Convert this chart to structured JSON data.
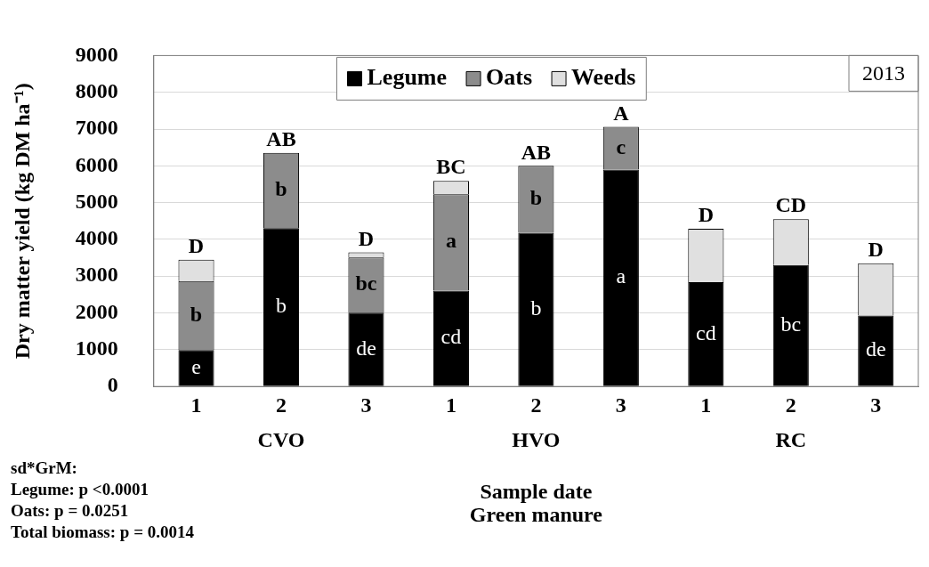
{
  "chart_data": {
    "type": "bar",
    "stacked": true,
    "title": "2013",
    "xlabel": "Sample date\nGreen manure",
    "ylabel": "Dry matter yield (kg DM ha⁻¹)",
    "categories": [
      "1",
      "2",
      "3",
      "1",
      "2",
      "3",
      "1",
      "2",
      "3"
    ],
    "series": [
      {
        "name": "Legume",
        "color": "#000000",
        "values": [
          990,
          4310,
          2010,
          2610,
          4180,
          5900,
          2840,
          3300,
          1930
        ],
        "value_labels": [
          "e",
          "b",
          "de",
          "cd",
          "b",
          "a",
          "cd",
          "bc",
          "de"
        ]
      },
      {
        "name": "Oats",
        "color": "#8c8c8c",
        "values": [
          1880,
          2040,
          1500,
          2620,
          1820,
          1160,
          0,
          0,
          0
        ],
        "value_labels": [
          "b",
          "b",
          "bc",
          "a",
          "b",
          "c",
          null,
          null,
          null
        ]
      },
      {
        "name": "Weeds",
        "color": "#e0e0e0",
        "values": [
          580,
          0,
          140,
          360,
          null,
          0,
          1450,
          1250,
          1420
        ]
      }
    ],
    "totals": [
      "D",
      "AB",
      "D",
      "BC",
      "AB",
      "A",
      "D",
      "CD",
      "D"
    ],
    "ylim": [
      0,
      9000
    ],
    "yticks": [
      0,
      1000,
      2000,
      3000,
      4000,
      5000,
      6000,
      7000,
      8000,
      9000
    ],
    "grid": "y",
    "legend": "top",
    "annotations": [
      "CVO",
      "HVO",
      "RC",
      "sd*GrM:\nLegume: p <0.0001\nOats: p = 0.0251\nTotal biomass: p = 0.0014"
    ]
  }
}
